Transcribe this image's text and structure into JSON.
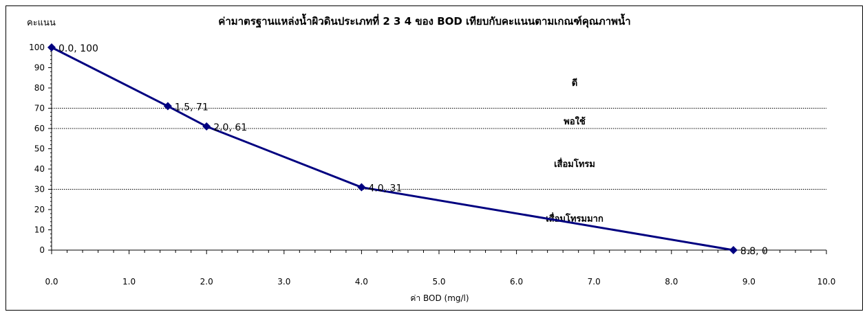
{
  "chart_data": {
    "type": "line",
    "title": "ค่ามาตรฐานแหล่งน้ำผิวดินประเภทที่ 2 3 4 ของ BOD เทียบกับคะแนนตามเกณฑ์คุณภาพน้ำ",
    "ylabel": "คะแนน",
    "xlabel": "ค่า BOD (mg/l)",
    "xlim": [
      0,
      10
    ],
    "ylim": [
      0,
      100
    ],
    "x_ticks": [
      "0.0",
      "1.0",
      "2.0",
      "3.0",
      "4.0",
      "5.0",
      "6.0",
      "7.0",
      "8.0",
      "9.0",
      "10.0"
    ],
    "y_ticks": [
      "0",
      "10",
      "20",
      "30",
      "40",
      "50",
      "60",
      "70",
      "80",
      "90",
      "100"
    ],
    "series": [
      {
        "x": [
          0.0,
          1.5,
          2.0,
          4.0,
          8.8
        ],
        "y": [
          100,
          71,
          61,
          31,
          0
        ],
        "labels": [
          "0.0, 100",
          "1.5, 71",
          "2.0, 61",
          "4.0, 31",
          "8.8, 0"
        ],
        "color": "#000080",
        "marker": "diamond"
      }
    ],
    "threshold_lines": [
      70,
      60,
      30
    ],
    "zone_labels": [
      {
        "text": "ดี",
        "x": 6.75,
        "y": 81
      },
      {
        "text": "พอใช้",
        "x": 6.75,
        "y": 62
      },
      {
        "text": "เสื่อมโทรม",
        "x": 6.75,
        "y": 41
      },
      {
        "text": "เสื่อมโทรมมาก",
        "x": 6.75,
        "y": 14
      }
    ],
    "grid": false,
    "legend": "none"
  }
}
